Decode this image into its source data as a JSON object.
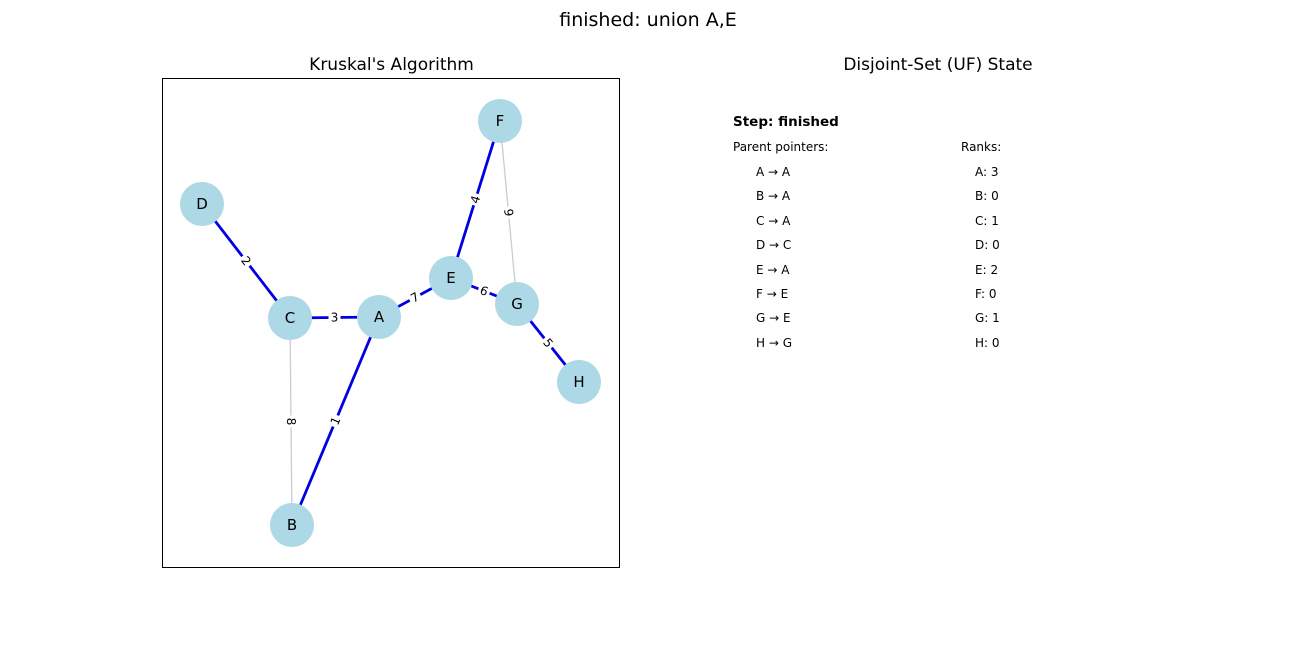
{
  "suptitle": "finished: union A,E",
  "graph_title": "Kruskal's Algorithm",
  "uf_title": "Disjoint-Set (UF) State",
  "colors": {
    "node_fill": "#add8e6",
    "mst_edge": "#0000e0",
    "non_mst_edge": "#cccccc"
  },
  "nodes": [
    {
      "id": "A",
      "label": "A"
    },
    {
      "id": "B",
      "label": "B"
    },
    {
      "id": "C",
      "label": "C"
    },
    {
      "id": "D",
      "label": "D"
    },
    {
      "id": "E",
      "label": "E"
    },
    {
      "id": "F",
      "label": "F"
    },
    {
      "id": "G",
      "label": "G"
    },
    {
      "id": "H",
      "label": "H"
    }
  ],
  "edges": [
    {
      "source": "A",
      "target": "B",
      "weight": "1",
      "in_mst": true
    },
    {
      "source": "C",
      "target": "D",
      "weight": "2",
      "in_mst": true
    },
    {
      "source": "A",
      "target": "C",
      "weight": "3",
      "in_mst": true
    },
    {
      "source": "E",
      "target": "F",
      "weight": "4",
      "in_mst": true
    },
    {
      "source": "G",
      "target": "H",
      "weight": "5",
      "in_mst": true
    },
    {
      "source": "E",
      "target": "G",
      "weight": "6",
      "in_mst": true
    },
    {
      "source": "A",
      "target": "E",
      "weight": "7",
      "in_mst": true
    },
    {
      "source": "B",
      "target": "C",
      "weight": "8",
      "in_mst": false
    },
    {
      "source": "F",
      "target": "G",
      "weight": "9",
      "in_mst": false
    }
  ],
  "uf_state": {
    "step_label": "Step: finished",
    "parent_header": "Parent pointers:",
    "rank_header": "Ranks:",
    "parents": [
      "A → A",
      "B → A",
      "C → A",
      "D → C",
      "E → A",
      "F → E",
      "G → E",
      "H → G"
    ],
    "ranks": [
      "A: 3",
      "B: 0",
      "C: 1",
      "D: 0",
      "E: 2",
      "F: 0",
      "G: 1",
      "H: 0"
    ]
  }
}
